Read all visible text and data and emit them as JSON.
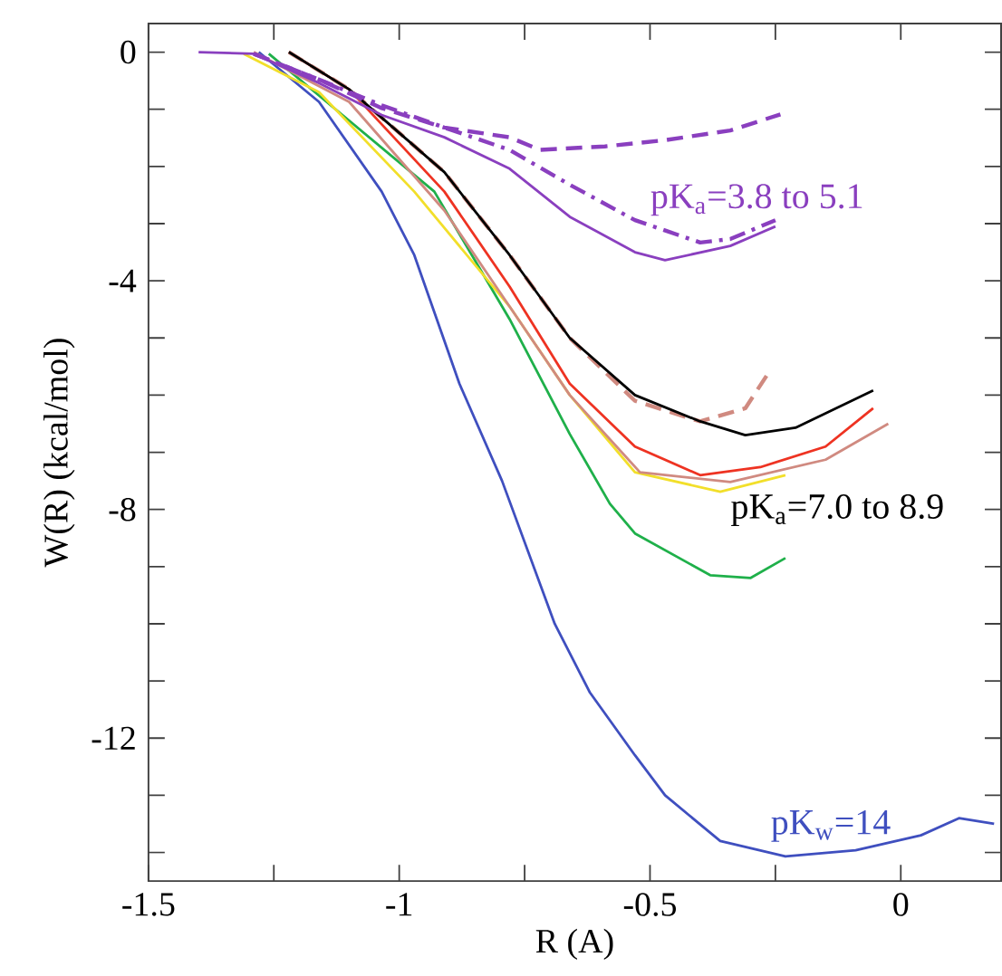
{
  "chart_data": {
    "type": "line",
    "xlabel": "R (A)",
    "ylabel": "W(R)  (kcal/mol)",
    "xlim": [
      -1.5,
      0.2
    ],
    "ylim": [
      -14.5,
      0.5
    ],
    "xticks": [
      -1.5,
      {
        "value": -1.25,
        "label": null
      },
      -1,
      {
        "value": -0.75,
        "label": null
      },
      -0.5,
      {
        "value": -0.25,
        "label": null
      },
      0
    ],
    "yticks": [
      0,
      {
        "value": -1,
        "label": null
      },
      {
        "value": -2,
        "label": null
      },
      {
        "value": -3,
        "label": null
      },
      -4,
      {
        "value": -5,
        "label": null
      },
      {
        "value": -6,
        "label": null
      },
      {
        "value": -7,
        "label": null
      },
      -8,
      {
        "value": -9,
        "label": null
      },
      {
        "value": -10,
        "label": null
      },
      {
        "value": -11,
        "label": null
      },
      -12,
      {
        "value": -13,
        "label": null
      },
      {
        "value": -14,
        "label": null
      }
    ],
    "grid": false,
    "legend": false,
    "marker": "none",
    "series": [
      {
        "name": "pK$_{w}$=14",
        "color": "#3f4fbf",
        "x": [
          -1.28,
          -1.16,
          -1.035,
          -0.97,
          -0.88,
          -0.795,
          -0.69,
          -0.62,
          -0.53,
          -0.47,
          -0.36,
          -0.23,
          -0.09,
          0.04,
          0.116,
          0.186
        ],
        "values": [
          0,
          -0.87,
          -2.44,
          -3.55,
          -5.8,
          -7.5,
          -10.0,
          -11.2,
          -12.3,
          -13.0,
          -13.8,
          -14.07,
          -13.96,
          -13.7,
          -13.4,
          -13.5
        ]
      },
      {
        "color": "#1fb04a",
        "x": [
          -1.26,
          -1.16,
          -0.93,
          -0.78,
          -0.66,
          -0.58,
          -0.53,
          -0.38,
          -0.3,
          -0.23
        ],
        "values": [
          -0.03,
          -0.76,
          -2.44,
          -4.67,
          -6.68,
          -7.9,
          -8.42,
          -9.15,
          -9.2,
          -8.85
        ]
      },
      {
        "color": "#f2df2a",
        "x": [
          -1.31,
          -1.16,
          -0.97,
          -0.78,
          -0.66,
          -0.53,
          -0.36,
          -0.23
        ],
        "values": [
          -0.03,
          -0.7,
          -2.44,
          -4.45,
          -6.0,
          -7.35,
          -7.69,
          -7.4
        ]
      },
      {
        "color": "#d08a80",
        "x": [
          -1.29,
          -1.1,
          -0.91,
          -0.78,
          -0.66,
          -0.52,
          -0.34,
          -0.15,
          -0.025
        ],
        "values": [
          0,
          -0.87,
          -2.77,
          -4.45,
          -6.0,
          -7.35,
          -7.52,
          -7.13,
          -6.5
        ]
      },
      {
        "color": "#ee3322",
        "x": [
          -1.22,
          -1.1,
          -0.91,
          -0.78,
          -0.66,
          -0.53,
          -0.4,
          -0.28,
          -0.15,
          -0.055
        ],
        "values": [
          0,
          -0.65,
          -2.44,
          -4.1,
          -5.8,
          -6.9,
          -7.4,
          -7.26,
          -6.9,
          -6.23
        ]
      },
      {
        "color": "#d08a80",
        "line_style": "dashed",
        "x": [
          -1.22,
          -1.1,
          -0.91,
          -0.78,
          -0.66,
          -0.53,
          -0.4,
          -0.31,
          -0.26
        ],
        "values": [
          0,
          -0.65,
          -2.1,
          -3.55,
          -5.0,
          -6.1,
          -6.46,
          -6.23,
          -5.56
        ]
      },
      {
        "name": "pK$_{a}$=7.0 to 8.9",
        "color": "#000000",
        "x": [
          -1.22,
          -1.1,
          -0.91,
          -0.78,
          -0.66,
          -0.53,
          -0.4,
          -0.31,
          -0.21,
          -0.055
        ],
        "values": [
          0,
          -0.65,
          -2.1,
          -3.55,
          -5.0,
          -6.0,
          -6.46,
          -6.7,
          -6.57,
          -5.92
        ]
      },
      {
        "name": "pK$_{a}$=3.8 to 5.1",
        "color": "#8a3fbf",
        "x": [
          -1.4,
          -1.29,
          -1.16,
          -1.035,
          -0.91,
          -0.78,
          -0.66,
          -0.53,
          -0.47,
          -0.34,
          -0.25
        ],
        "values": [
          0,
          -0.03,
          -0.54,
          -1.1,
          -1.49,
          -2.04,
          -2.88,
          -3.5,
          -3.64,
          -3.39,
          -3.05
        ]
      },
      {
        "color": "#8a3fbf",
        "line_style": "dashed",
        "x": [
          -1.29,
          -1.16,
          -1.035,
          -0.91,
          -0.78,
          -0.72,
          -0.59,
          -0.47,
          -0.34,
          -0.24
        ],
        "values": [
          -0.03,
          -0.48,
          -0.98,
          -1.32,
          -1.49,
          -1.71,
          -1.65,
          -1.54,
          -1.37,
          -1.09
        ]
      },
      {
        "color": "#8a3fbf",
        "line_style": "dashdot",
        "x": [
          -1.29,
          -1.16,
          -1.035,
          -0.91,
          -0.78,
          -0.66,
          -0.53,
          -0.4,
          -0.34,
          -0.25
        ],
        "values": [
          -0.03,
          -0.48,
          -0.93,
          -1.32,
          -1.71,
          -2.32,
          -2.94,
          -3.33,
          -3.27,
          -2.94
        ]
      }
    ]
  }
}
